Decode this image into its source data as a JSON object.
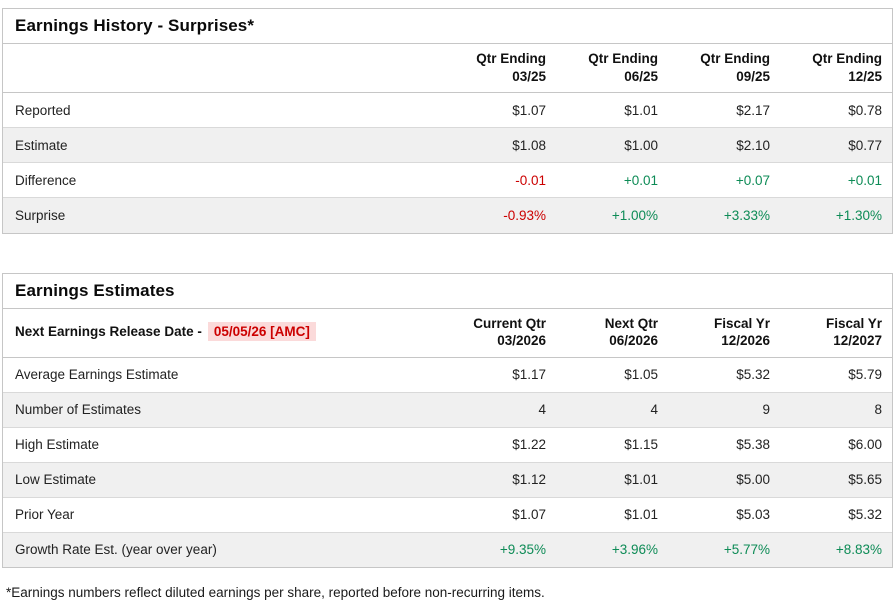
{
  "colors": {
    "negative_text": "#cc0000",
    "positive_text": "#0d8b56",
    "date_highlight_bg": "#fbdada",
    "alt_row_bg": "#f0f0f0",
    "border": "#c6c6c6"
  },
  "history": {
    "title": "Earnings History - Surprises*",
    "columns": [
      {
        "line1": "Qtr Ending",
        "line2": "03/25"
      },
      {
        "line1": "Qtr Ending",
        "line2": "06/25"
      },
      {
        "line1": "Qtr Ending",
        "line2": "09/25"
      },
      {
        "line1": "Qtr Ending",
        "line2": "12/25"
      }
    ],
    "rows": [
      {
        "label": "Reported",
        "values": [
          "$1.07",
          "$1.01",
          "$2.17",
          "$0.78"
        ]
      },
      {
        "label": "Estimate",
        "values": [
          "$1.08",
          "$1.00",
          "$2.10",
          "$0.77"
        ]
      },
      {
        "label": "Difference",
        "values": [
          "-0.01",
          "+0.01",
          "+0.07",
          "+0.01"
        ]
      },
      {
        "label": "Surprise",
        "values": [
          "-0.93%",
          "+1.00%",
          "+3.33%",
          "+1.30%"
        ]
      }
    ]
  },
  "estimates": {
    "title": "Earnings Estimates",
    "release_date_label": "Next Earnings Release Date -",
    "release_date_value": "05/05/26 [AMC]",
    "columns": [
      {
        "line1": "Current Qtr",
        "line2": "03/2026"
      },
      {
        "line1": "Next Qtr",
        "line2": "06/2026"
      },
      {
        "line1": "Fiscal Yr",
        "line2": "12/2026"
      },
      {
        "line1": "Fiscal Yr",
        "line2": "12/2027"
      }
    ],
    "rows": [
      {
        "label": "Average Earnings Estimate",
        "values": [
          "$1.17",
          "$1.05",
          "$5.32",
          "$5.79"
        ]
      },
      {
        "label": "Number of Estimates",
        "values": [
          "4",
          "4",
          "9",
          "8"
        ]
      },
      {
        "label": "High Estimate",
        "values": [
          "$1.22",
          "$1.15",
          "$5.38",
          "$6.00"
        ]
      },
      {
        "label": "Low Estimate",
        "values": [
          "$1.12",
          "$1.01",
          "$5.00",
          "$5.65"
        ]
      },
      {
        "label": "Prior Year",
        "values": [
          "$1.07",
          "$1.01",
          "$5.03",
          "$5.32"
        ]
      },
      {
        "label": "Growth Rate Est. (year over year)",
        "values": [
          "+9.35%",
          "+3.96%",
          "+5.77%",
          "+8.83%"
        ]
      }
    ]
  },
  "footnote": "*Earnings numbers reflect diluted earnings per share, reported before non-recurring items."
}
